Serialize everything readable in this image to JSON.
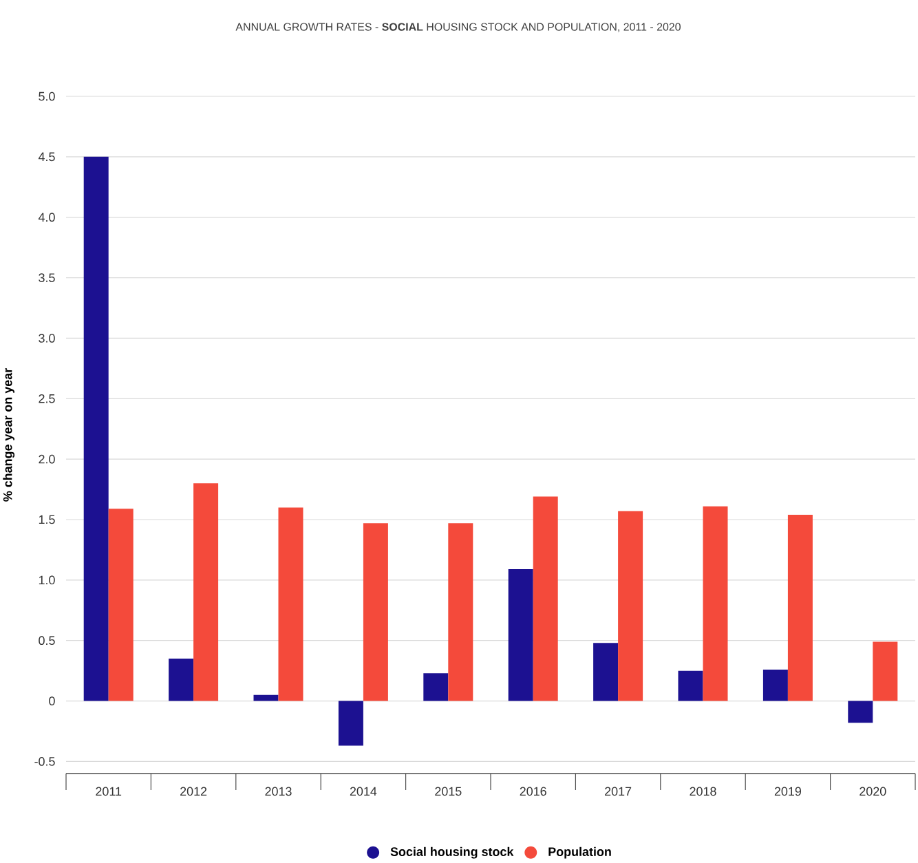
{
  "chart_data": {
    "type": "bar",
    "title": "ANNUAL GROWTH RATES - **SOCIAL** HOUSING STOCK AND POPULATION, 2011 - 2020",
    "ylabel": "% change year on year",
    "categories": [
      "2011",
      "2012",
      "2013",
      "2014",
      "2015",
      "2016",
      "2017",
      "2018",
      "2019",
      "2020"
    ],
    "series": [
      {
        "name": "Social housing stock",
        "color": "#1c1191",
        "values": [
          4.5,
          0.35,
          0.05,
          -0.37,
          0.23,
          1.09,
          0.48,
          0.25,
          0.26,
          -0.18
        ]
      },
      {
        "name": "Population",
        "color": "#f44a3b",
        "values": [
          1.59,
          1.8,
          1.6,
          1.47,
          1.47,
          1.69,
          1.57,
          1.61,
          1.54,
          0.49
        ]
      }
    ],
    "ylim": [
      -0.6,
      5.0
    ],
    "yticks": [
      {
        "value": -0.5,
        "label": "-0.5"
      },
      {
        "value": 0,
        "label": "0"
      },
      {
        "value": 0.5,
        "label": "0.5"
      },
      {
        "value": 1.0,
        "label": "1.0"
      },
      {
        "value": 1.5,
        "label": "1.5"
      },
      {
        "value": 2.0,
        "label": "2.0"
      },
      {
        "value": 2.5,
        "label": "2.5"
      },
      {
        "value": 3.0,
        "label": "3.0"
      },
      {
        "value": 3.5,
        "label": "3.5"
      },
      {
        "value": 4.0,
        "label": "4.0"
      },
      {
        "value": 4.5,
        "label": "4.5"
      },
      {
        "value": 5.0,
        "label": "5.0"
      }
    ],
    "grid": "y",
    "legend": "bottom"
  }
}
